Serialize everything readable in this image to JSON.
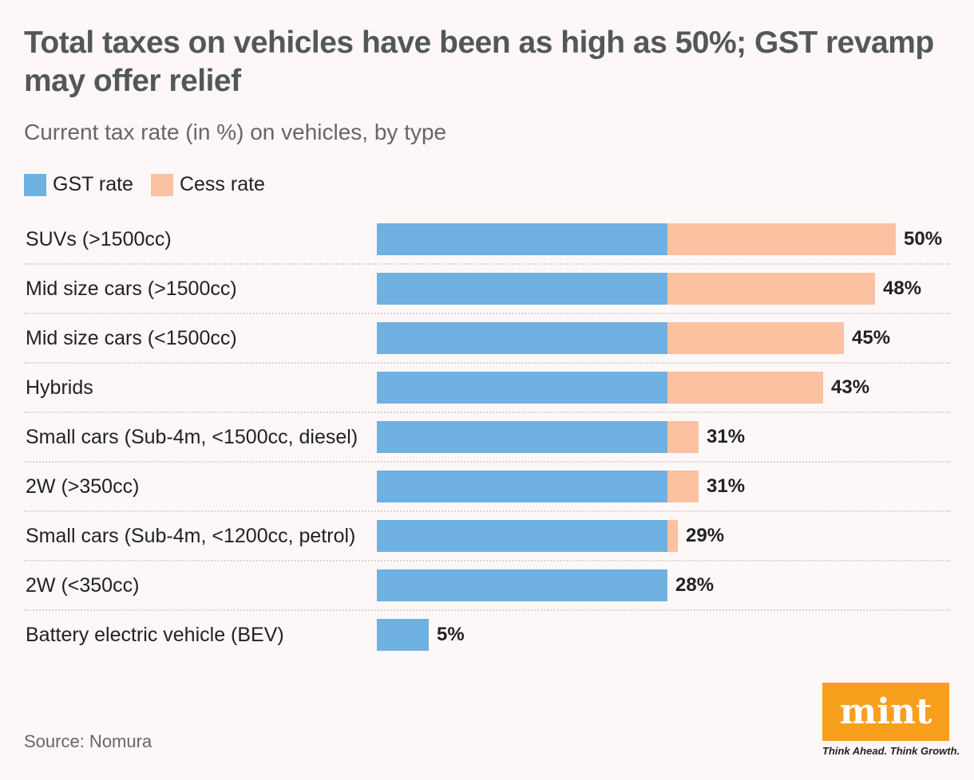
{
  "chart_data": {
    "type": "bar",
    "orientation": "horizontal",
    "stacked": true,
    "title": "Total taxes on vehicles have been as high as 50%; GST revamp may offer relief",
    "subtitle": "Current tax rate (in %) on vehicles, by type",
    "categories": [
      "SUVs (>1500cc)",
      "Mid size cars (>1500cc)",
      "Mid size cars (<1500cc)",
      "Hybrids",
      "Small cars (Sub-4m, <1500cc, diesel)",
      "2W (>350cc)",
      "Small cars (Sub-4m, <1200cc, petrol)",
      "2W (<350cc)",
      "Battery electric vehicle (BEV)"
    ],
    "series": [
      {
        "name": "GST rate",
        "color": "#6fb1e1",
        "values": [
          28,
          28,
          28,
          28,
          28,
          28,
          28,
          28,
          5
        ]
      },
      {
        "name": "Cess rate",
        "color": "#fbc1a1",
        "values": [
          22,
          20,
          17,
          15,
          3,
          3,
          1,
          0,
          0
        ]
      }
    ],
    "total_labels": [
      "50%",
      "48%",
      "45%",
      "43%",
      "31%",
      "31%",
      "29%",
      "28%",
      "5%"
    ],
    "xlim": [
      0,
      50
    ],
    "grid": false,
    "legend_placement": "top-left",
    "source": "Source: Nomura"
  },
  "logo": {
    "text": "mint",
    "tagline": "Think Ahead. Think Growth.",
    "color": "#f99f1e"
  }
}
